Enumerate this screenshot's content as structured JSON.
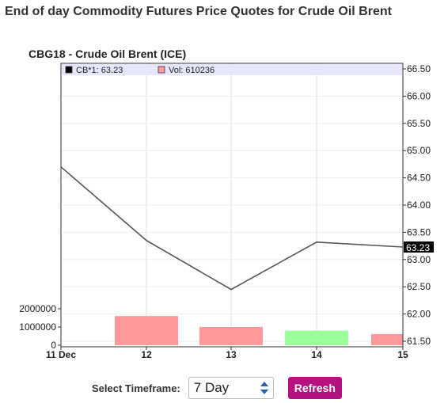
{
  "page": {
    "title": "End of day Commodity Futures Price Quotes for Crude Oil Brent"
  },
  "controls": {
    "timeframe_label": "Select Timeframe:",
    "timeframe_value": "7 Day",
    "refresh_label": "Refresh"
  },
  "colors": {
    "price_line": "#555555",
    "volume_up": "#99ff99",
    "volume_down": "#ff9999",
    "legend_bg": "#e6e6ff",
    "last_price_tag": "#000000",
    "refresh_button": "#b5127f"
  },
  "chart_data": {
    "type": "line",
    "title": "CBG18 - Crude Oil Brent (ICE)",
    "legend": [
      {
        "label": "CB*1: 63.23",
        "swatch": "#000000"
      },
      {
        "label": "Vol: 610236",
        "swatch": "#ff9999"
      }
    ],
    "x": [
      "11 Dec",
      "12",
      "13",
      "14",
      "15"
    ],
    "series": [
      {
        "name": "CB*1",
        "values": [
          64.7,
          63.35,
          62.45,
          63.32,
          63.23
        ]
      }
    ],
    "volume": {
      "values": [
        null,
        1600000,
        1000000,
        800000,
        610236
      ],
      "direction": [
        null,
        "down",
        "down",
        "up",
        "down"
      ],
      "ticks": [
        "0",
        "1000000",
        "2000000"
      ],
      "ylim": [
        0,
        2000000
      ]
    },
    "y_ticks": [
      "61.50",
      "62.00",
      "62.50",
      "63.00",
      "63.50",
      "64.00",
      "64.50",
      "65.00",
      "65.50",
      "66.00",
      "66.50"
    ],
    "ylim": [
      61.5,
      66.5
    ],
    "last_price_label": "63.23",
    "grid": true
  }
}
